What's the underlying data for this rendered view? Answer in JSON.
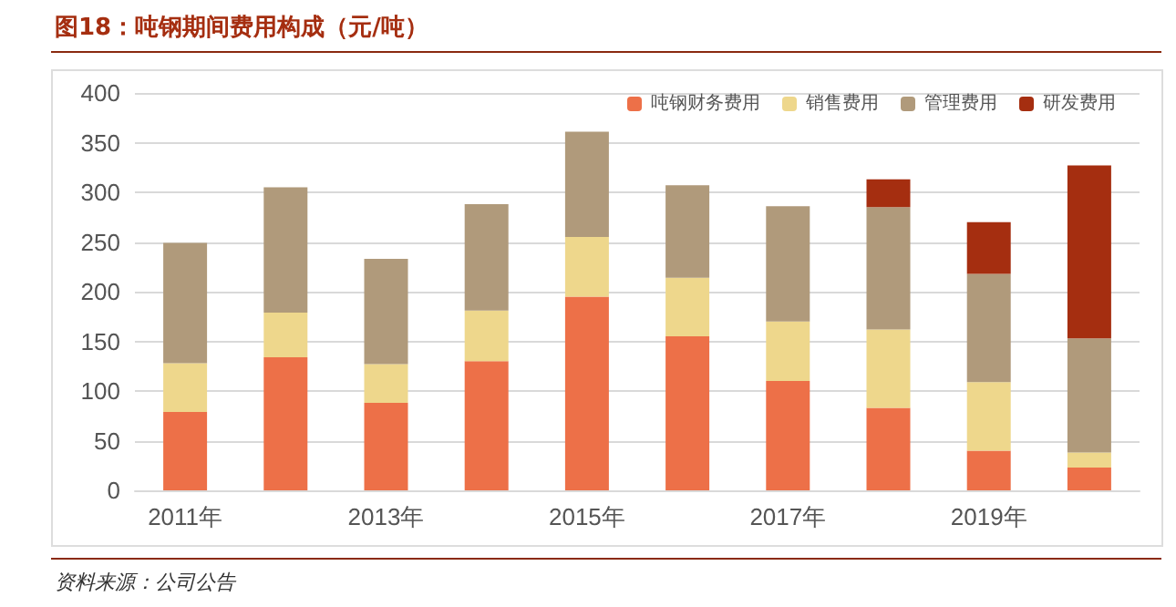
{
  "chart_data": {
    "type": "bar",
    "title": "图18：吨钢期间费用构成（元/吨）",
    "annotations": [
      "资料来源：公司公告"
    ],
    "categories": [
      "2011年",
      null,
      "2013年",
      null,
      "2015年",
      null,
      "2017年",
      null,
      "2019年",
      null
    ],
    "stacked": true,
    "series": [
      {
        "name": "吨钢财务费用",
        "color": "#ed7048",
        "values": [
          79,
          134,
          88,
          130,
          195,
          155,
          110,
          83,
          40,
          23
        ]
      },
      {
        "name": "销售费用",
        "color": "#eed78c",
        "values": [
          49,
          45,
          39,
          51,
          60,
          59,
          60,
          79,
          69,
          15
        ]
      },
      {
        "name": "管理费用",
        "color": "#b09a7b",
        "values": [
          121,
          126,
          106,
          107,
          106,
          93,
          116,
          123,
          109,
          115
        ]
      },
      {
        "name": "研发费用",
        "color": "#a52e10",
        "values": [
          null,
          null,
          null,
          null,
          null,
          null,
          null,
          28,
          52,
          174
        ]
      }
    ],
    "ylim": [
      0,
      400
    ],
    "yticks": [
      0,
      50,
      100,
      150,
      200,
      250,
      300,
      350,
      400
    ],
    "grid": "y",
    "legend": "top right"
  }
}
